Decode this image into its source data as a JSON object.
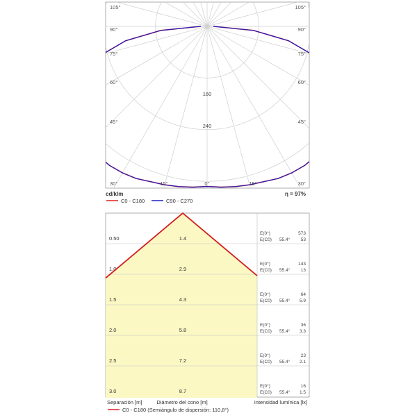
{
  "polar": {
    "angle_labels": {
      "left": [
        "105°",
        "90°",
        "75°",
        "60°",
        "45°",
        "30°"
      ],
      "right": [
        "105°",
        "90°",
        "75°",
        "60°",
        "45°",
        "30°"
      ],
      "bottom": [
        "30°",
        "15°",
        "0°",
        "15°",
        "30°"
      ]
    },
    "radial_labels": [
      "160",
      "240"
    ],
    "unit_label": "cd/klm",
    "efficiency_label": "η = 97%",
    "legend": [
      {
        "label": "C0 - C180",
        "color": "#e02020"
      },
      {
        "label": "C90 - C270",
        "color": "#2020c0"
      }
    ]
  },
  "chart_data": [
    {
      "type": "polar-line",
      "unit": "cd/klm",
      "efficiency_percent": 97,
      "radial_ticks": [
        80,
        160,
        240
      ],
      "series": [
        {
          "name": "C90 - C270",
          "color": "#2020c0",
          "angles_deg": [
            0,
            5,
            10,
            15,
            20,
            25,
            30,
            35,
            40,
            45,
            50,
            55,
            60,
            65,
            70,
            75,
            80,
            85,
            90
          ],
          "values": [
            248,
            250,
            252,
            254,
            256,
            260,
            262,
            263,
            262,
            260,
            255,
            248,
            238,
            222,
            200,
            168,
            128,
            72,
            10
          ]
        },
        {
          "name": "C0 - C180",
          "color": "#e02020",
          "angles_deg": [
            0,
            5,
            10,
            15,
            20,
            25,
            30,
            35,
            40,
            45,
            50,
            55,
            60,
            65,
            70,
            75,
            80,
            85,
            90
          ],
          "values": [
            248,
            250,
            252,
            254,
            256,
            260,
            262,
            263,
            262,
            260,
            255,
            248,
            238,
            222,
            200,
            168,
            128,
            72,
            10
          ]
        }
      ]
    },
    {
      "type": "table",
      "title": "",
      "columns": [
        "Separación [m]",
        "Diámetro del cono [m]",
        "Intensidad lumínica [lx]"
      ],
      "half_angle_label": "C0 - C180 (Semiángulo de dispersión: 110,8°)",
      "rows": [
        {
          "sep": "0.50",
          "diam": "1.4",
          "e0_label": "E(0°)",
          "ec0_label": "E(C0)",
          "angle": "55.4°",
          "e0": "573",
          "ec0": "53"
        },
        {
          "sep": "1.0",
          "diam": "2.9",
          "e0_label": "E(0°)",
          "ec0_label": "E(C0)",
          "angle": "55.4°",
          "e0": "143",
          "ec0": "13"
        },
        {
          "sep": "1.5",
          "diam": "4.3",
          "e0_label": "E(0°)",
          "ec0_label": "E(C0)",
          "angle": "55.4°",
          "e0": "64",
          "ec0": "5.9"
        },
        {
          "sep": "2.0",
          "diam": "5.8",
          "e0_label": "E(0°)",
          "ec0_label": "E(C0)",
          "angle": "55.4°",
          "e0": "36",
          "ec0": "3.3"
        },
        {
          "sep": "2.5",
          "diam": "7.2",
          "e0_label": "E(0°)",
          "ec0_label": "E(C0)",
          "angle": "55.4°",
          "e0": "23",
          "ec0": "2.1"
        },
        {
          "sep": "3.0",
          "diam": "8.7",
          "e0_label": "E(0°)",
          "ec0_label": "E(C0)",
          "angle": "55.4°",
          "e0": "16",
          "ec0": "1.5"
        }
      ]
    }
  ]
}
